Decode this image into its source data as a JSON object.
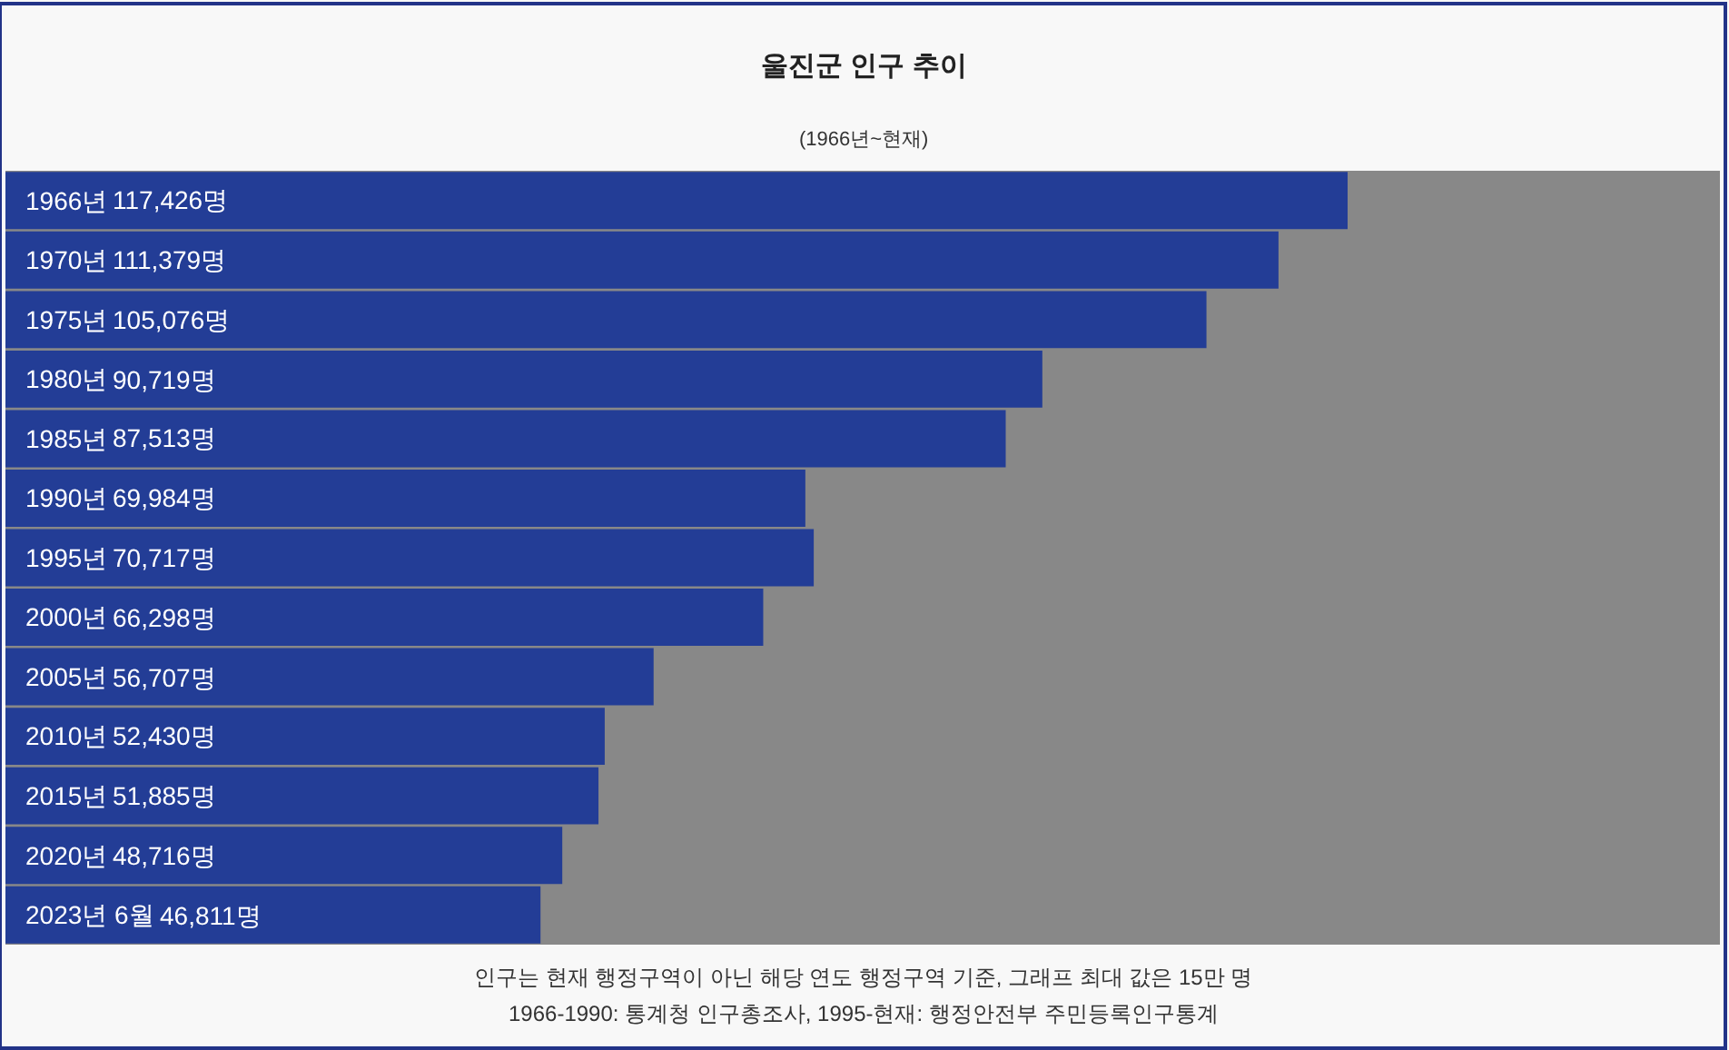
{
  "chart_data": {
    "type": "bar",
    "orientation": "horizontal",
    "title": "울진군 인구 추이",
    "subtitle": "(1966년~현재)",
    "categories": [
      "1966년",
      "1970년",
      "1975년",
      "1980년",
      "1985년",
      "1990년",
      "1995년",
      "2000년",
      "2005년",
      "2010년",
      "2015년",
      "2020년",
      "2023년 6월"
    ],
    "values": [
      117426,
      111379,
      105076,
      90719,
      87513,
      69984,
      70717,
      66298,
      56707,
      52430,
      51885,
      48716,
      46811
    ],
    "value_labels": [
      "117,426명",
      "111,379명",
      "105,076명",
      "90,719명",
      "87,513명",
      "69,984명",
      "70,717명",
      "66,298명",
      "56,707명",
      "52,430명",
      "51,885명",
      "48,716명",
      "46,811명"
    ],
    "color": "#233d96",
    "xlim": [
      0,
      150000
    ],
    "tick_labels": "y",
    "legend": false,
    "annotations": [
      "인구는 현재 행정구역이 아닌 해당 연도 행정구역 기준, 그래프 최대 값은 15만 명",
      "1966-1990: 통계청 인구총조사, 1995-현재: 행정안전부 주민등록인구통계"
    ]
  }
}
